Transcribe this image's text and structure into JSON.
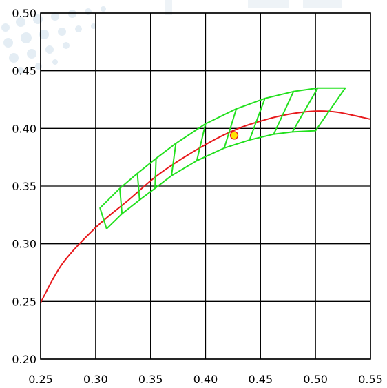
{
  "chart_data": {
    "type": "line",
    "title": "",
    "xlabel": "",
    "ylabel": "",
    "xlim": [
      0.25,
      0.55
    ],
    "ylim": [
      0.2,
      0.5
    ],
    "grid": true,
    "xticks": [
      0.25,
      0.3,
      0.35,
      0.4,
      0.45,
      0.5,
      0.55
    ],
    "yticks": [
      0.2,
      0.25,
      0.3,
      0.35,
      0.4,
      0.45,
      0.5
    ],
    "xtick_labels": [
      "0.25",
      "0.30",
      "0.35",
      "0.40",
      "0.45",
      "0.50",
      "0.55"
    ],
    "ytick_labels": [
      "0.20",
      "0.25",
      "0.30",
      "0.35",
      "0.40",
      "0.45",
      "0.50"
    ],
    "curve": {
      "color": "#e8191c",
      "x": [
        0.25,
        0.27,
        0.3,
        0.33,
        0.36,
        0.4,
        0.43,
        0.46,
        0.48,
        0.5,
        0.52,
        0.55
      ],
      "y": [
        0.249,
        0.283,
        0.314,
        0.338,
        0.362,
        0.386,
        0.4,
        0.409,
        0.413,
        0.415,
        0.414,
        0.408
      ]
    },
    "region": {
      "color": "#22e01e",
      "upper": {
        "x": [
          0.304,
          0.322,
          0.338,
          0.355,
          0.373,
          0.4,
          0.428,
          0.454,
          0.48,
          0.502,
          0.527
        ],
        "y": [
          0.331,
          0.348,
          0.361,
          0.374,
          0.387,
          0.404,
          0.417,
          0.426,
          0.432,
          0.435,
          0.435
        ]
      },
      "lower": {
        "x": [
          0.31,
          0.324,
          0.34,
          0.354,
          0.369,
          0.392,
          0.417,
          0.44,
          0.462,
          0.479,
          0.5
        ],
        "y": [
          0.313,
          0.326,
          0.338,
          0.348,
          0.359,
          0.372,
          0.383,
          0.39,
          0.395,
          0.397,
          0.398
        ]
      }
    },
    "points": [
      {
        "x": 0.426,
        "y": 0.394,
        "color": "#ffe400",
        "edge": "#e8191c"
      }
    ]
  }
}
